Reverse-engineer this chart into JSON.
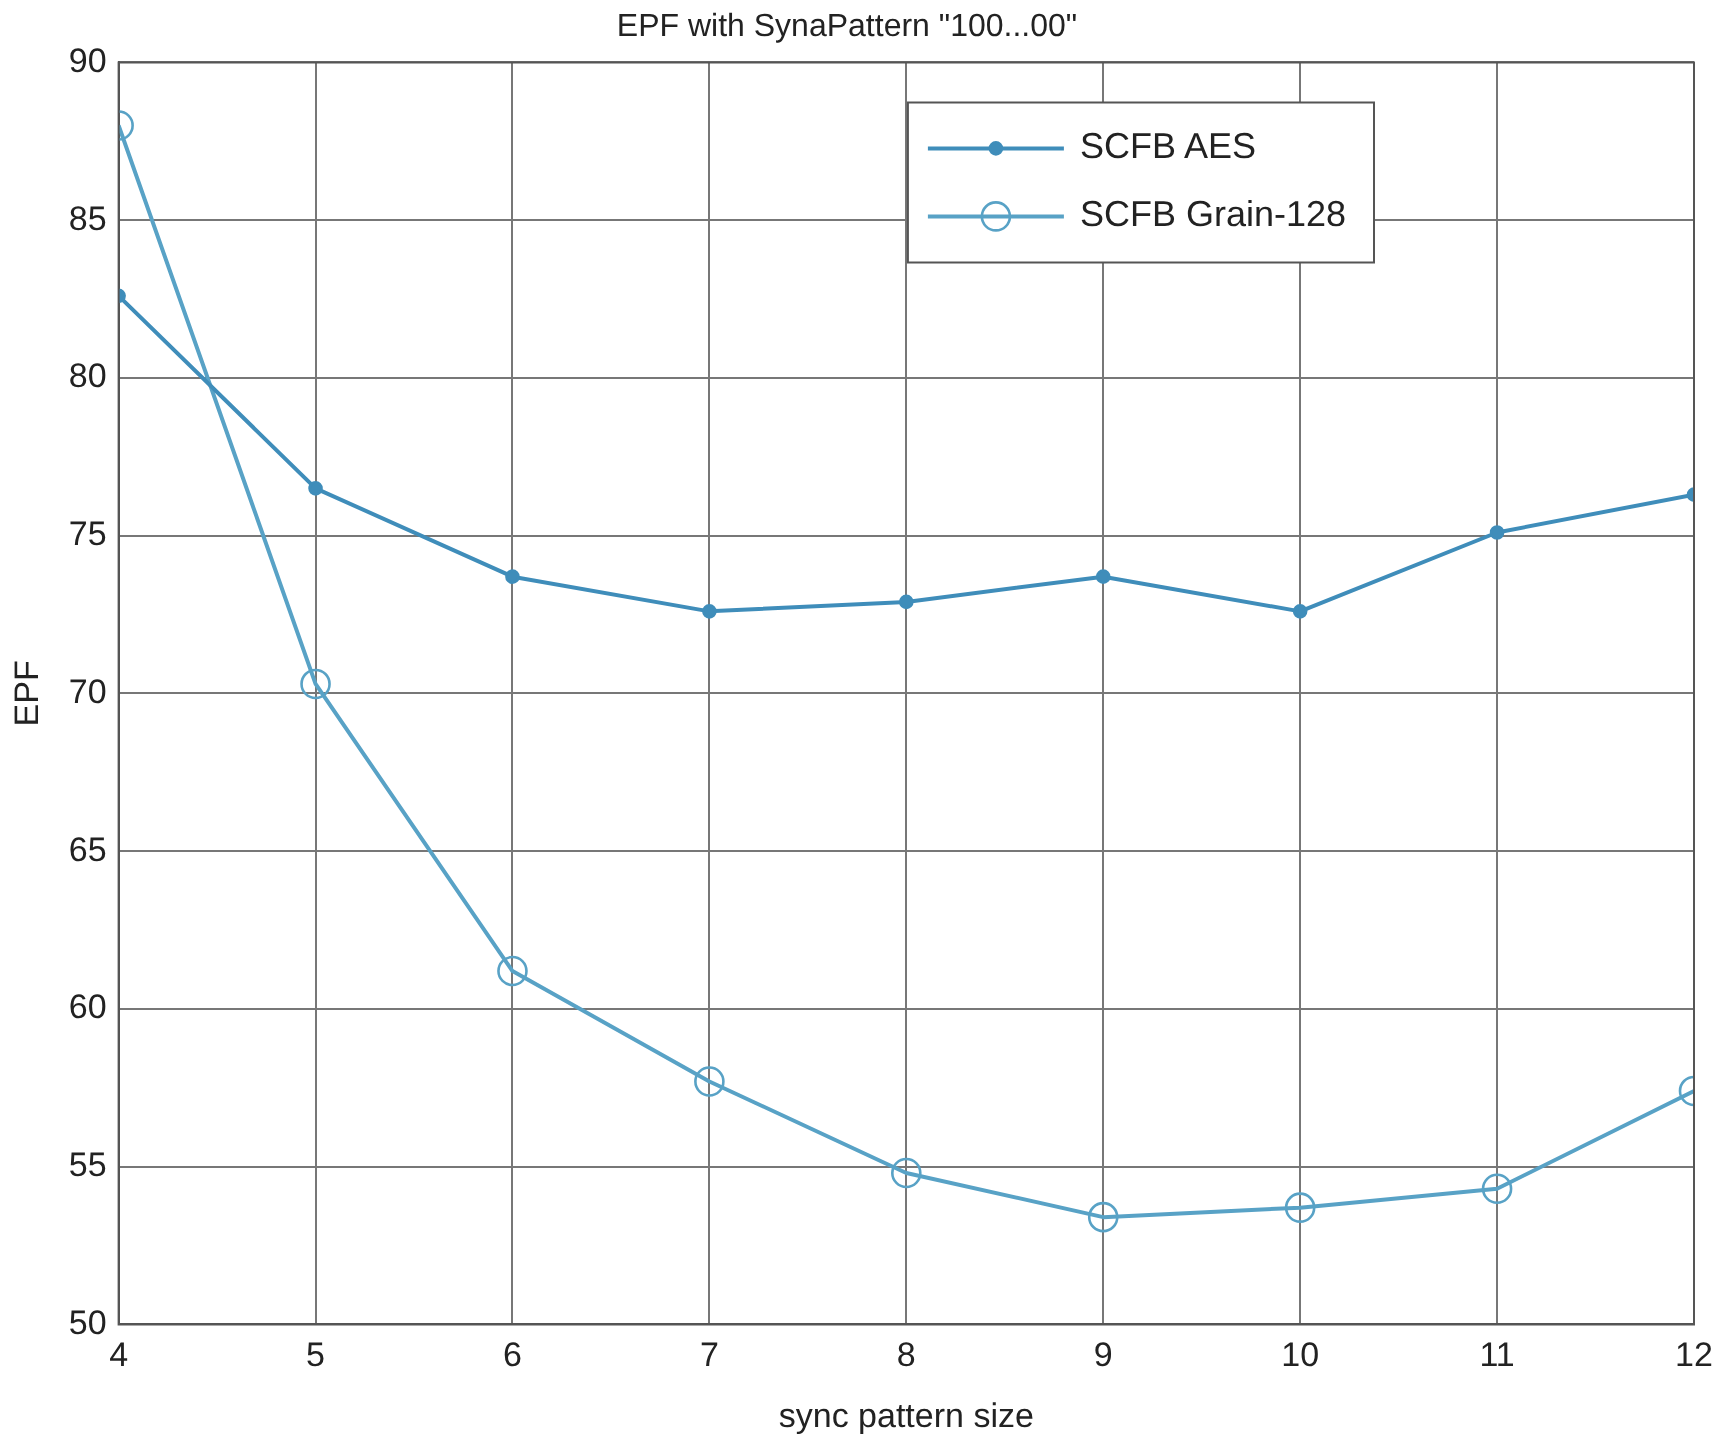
{
  "chart_data": {
    "type": "line",
    "title": "EPF with SynaPattern \"100...00\"",
    "xlabel": "sync pattern size",
    "ylabel": "EPF",
    "x": [
      4,
      5,
      6,
      7,
      8,
      9,
      10,
      11,
      12
    ],
    "series": [
      {
        "name": "SCFB AES",
        "color": "#3f8dba",
        "marker": "circle",
        "values": [
          82.6,
          76.5,
          73.7,
          72.6,
          72.9,
          73.7,
          72.6,
          75.1,
          76.3
        ]
      },
      {
        "name": "SCFB Grain-128",
        "color": "#58a2c6",
        "marker": "circle_open",
        "values": [
          88.0,
          70.3,
          61.2,
          57.7,
          54.8,
          53.4,
          53.7,
          54.3,
          57.4
        ]
      }
    ],
    "xlim": [
      4,
      12
    ],
    "xticks": [
      4,
      5,
      6,
      7,
      8,
      9,
      10,
      11,
      12
    ],
    "ylim": [
      50,
      90
    ],
    "yticks": [
      50,
      55,
      60,
      65,
      70,
      75,
      80,
      85,
      90
    ],
    "grid": true,
    "legend": "top right",
    "line_style": "solid"
  }
}
